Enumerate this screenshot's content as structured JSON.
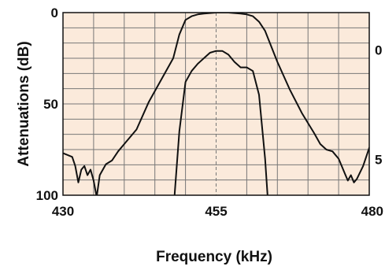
{
  "chart_data": {
    "type": "line",
    "title": "",
    "xlabel": "Frequency (kHz)",
    "ylabel": "Attenuations (dB)",
    "xlim": [
      430,
      480
    ],
    "ylim": [
      0,
      100
    ],
    "y_inverted": true,
    "x_ticks": [
      "430",
      "455",
      "480"
    ],
    "x_tick_values": [
      430,
      455,
      480
    ],
    "y_ticks": [
      "0",
      "50",
      "100"
    ],
    "y_tick_values": [
      0,
      50,
      100
    ],
    "y2_ticks": [
      "0",
      "5"
    ],
    "y2_tick_positions_left_units": [
      20,
      80
    ],
    "grid": true,
    "background": "#fbeadb",
    "line_color": "#111111",
    "grid_color": "#777777",
    "dashed_reference_lines": {
      "x": 455,
      "y": 50
    },
    "series": [
      {
        "x": [
          430,
          431.5,
          432,
          432.5,
          433,
          433.5,
          434,
          434.5,
          435,
          435.5,
          436,
          437,
          438,
          439,
          440,
          442,
          444,
          446,
          448,
          449,
          450,
          451,
          452,
          453,
          455,
          457,
          459,
          460,
          461,
          462,
          463,
          465,
          467,
          469,
          471,
          472,
          473,
          474,
          475,
          475.5,
          476,
          476.5,
          477,
          477.5,
          478,
          479,
          480
        ],
        "y": [
          77,
          79,
          84,
          93,
          86,
          84,
          89,
          86,
          92,
          101,
          89,
          83,
          81,
          76,
          72,
          64,
          49,
          37,
          25,
          12,
          4,
          2,
          1,
          0.5,
          0,
          0,
          0.5,
          1,
          2,
          5,
          10,
          27,
          42,
          55,
          66,
          72,
          75,
          76,
          80,
          84,
          88,
          92,
          89,
          93,
          91,
          84,
          74
        ]
      },
      {
        "x": [
          447.5,
          448,
          449,
          450,
          451,
          452,
          453,
          454,
          455,
          456,
          457,
          458,
          459,
          460,
          461,
          462,
          463,
          464
        ],
        "y": [
          130,
          110,
          65,
          38,
          32,
          28,
          25,
          22,
          21,
          21,
          23,
          27,
          30,
          30,
          32,
          45,
          80,
          130
        ]
      }
    ]
  }
}
